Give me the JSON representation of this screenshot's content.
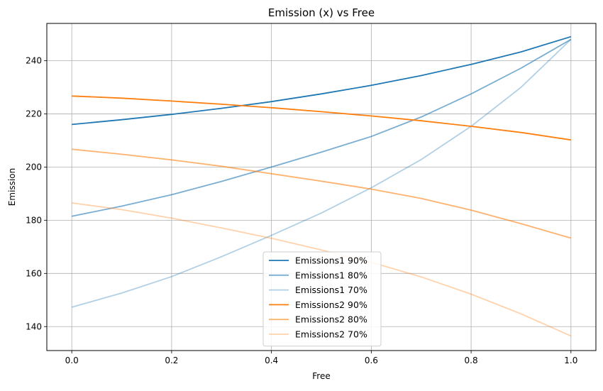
{
  "chart_data": {
    "type": "line",
    "title": "Emission (x) vs Free",
    "xlabel": "Free",
    "ylabel": "Emission",
    "xlim": [
      -0.05,
      1.05
    ],
    "ylim": [
      131,
      254
    ],
    "x_ticks": [
      0.0,
      0.2,
      0.4,
      0.6,
      0.8,
      1.0
    ],
    "x_tick_labels": [
      "0.0",
      "0.2",
      "0.4",
      "0.6",
      "0.8",
      "1.0"
    ],
    "y_ticks": [
      140,
      160,
      180,
      200,
      220,
      240
    ],
    "y_tick_labels": [
      "140",
      "160",
      "180",
      "200",
      "220",
      "240"
    ],
    "grid": true,
    "legend_position": "bottom-center",
    "x": [
      0.0,
      0.1,
      0.2,
      0.3,
      0.4,
      0.5,
      0.6,
      0.7,
      0.8,
      0.9,
      1.0
    ],
    "series": [
      {
        "name": "Emissions1 90%",
        "color": "#1f77b4",
        "opacity": 1.0,
        "values": [
          216.0,
          217.8,
          219.8,
          222.1,
          224.6,
          227.5,
          230.7,
          234.4,
          238.6,
          243.3,
          249.0
        ]
      },
      {
        "name": "Emissions1 80%",
        "color": "#1f77b4",
        "opacity": 0.6,
        "values": [
          181.5,
          185.3,
          189.6,
          194.6,
          200.0,
          205.6,
          211.5,
          218.8,
          227.5,
          237.2,
          248.0
        ]
      },
      {
        "name": "Emissions1 70%",
        "color": "#1f77b4",
        "opacity": 0.35,
        "values": [
          147.3,
          152.6,
          158.8,
          166.3,
          174.3,
          182.7,
          192.2,
          202.8,
          215.3,
          230.0,
          248.0
        ]
      },
      {
        "name": "Emissions2 90%",
        "color": "#ff7f0e",
        "opacity": 1.0,
        "values": [
          226.7,
          225.9,
          224.8,
          223.6,
          222.3,
          220.8,
          219.2,
          217.4,
          215.3,
          213.0,
          210.2
        ]
      },
      {
        "name": "Emissions2 80%",
        "color": "#ff7f0e",
        "opacity": 0.6,
        "values": [
          206.7,
          204.8,
          202.7,
          200.3,
          197.5,
          194.7,
          191.7,
          188.2,
          183.8,
          178.7,
          173.3
        ]
      },
      {
        "name": "Emissions2 70%",
        "color": "#ff7f0e",
        "opacity": 0.35,
        "values": [
          186.5,
          184.0,
          180.8,
          177.1,
          173.2,
          168.8,
          164.2,
          158.7,
          152.2,
          144.8,
          136.5
        ]
      }
    ]
  }
}
